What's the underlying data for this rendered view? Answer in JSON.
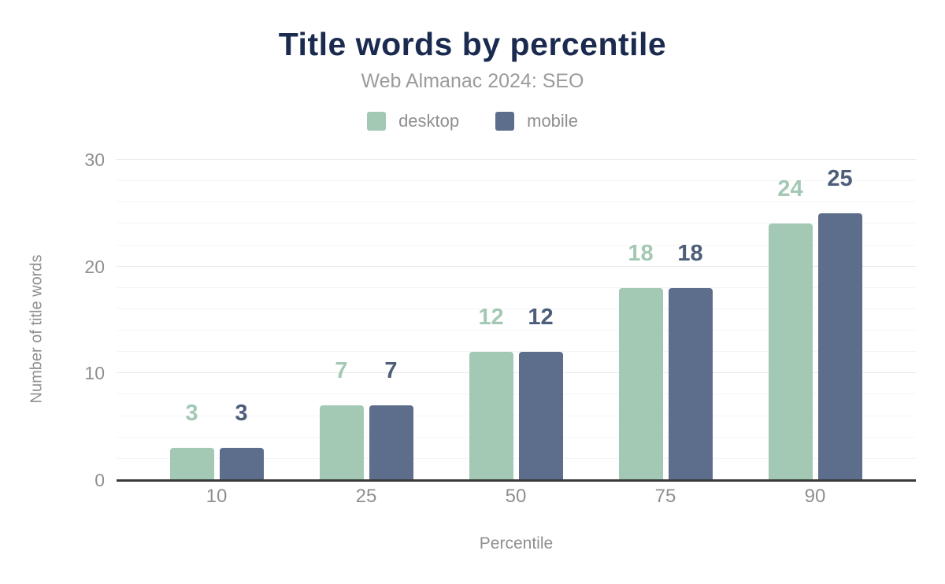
{
  "chart_data": {
    "type": "bar",
    "title": "Title words by percentile",
    "subtitle": "Web Almanac 2024: SEO",
    "categories": [
      "10",
      "25",
      "50",
      "75",
      "90"
    ],
    "series": [
      {
        "name": "desktop",
        "color": "#a3c9b4",
        "label_color": "#a3c9b4",
        "values": [
          3,
          7,
          12,
          18,
          24
        ]
      },
      {
        "name": "mobile",
        "color": "#5d6e8c",
        "label_color": "#4d5e7a",
        "values": [
          3,
          7,
          12,
          18,
          25
        ]
      }
    ],
    "xlabel": "Percentile",
    "ylabel": "Number of title words",
    "ylim": [
      0,
      30
    ],
    "y_ticks": [
      0,
      10,
      20,
      30
    ],
    "minor_grid_step": 2,
    "major_grid_step": 10,
    "grid": true,
    "legend_position": "top",
    "colors": {
      "title": "#1b2b4f",
      "subtitle": "#9b9b9b",
      "axis_text": "#8f8f8f",
      "axis_line": "#3a3a3a",
      "grid_major": "#e9e9e9",
      "grid_minor": "#f5f5f5",
      "background": "#ffffff"
    }
  }
}
